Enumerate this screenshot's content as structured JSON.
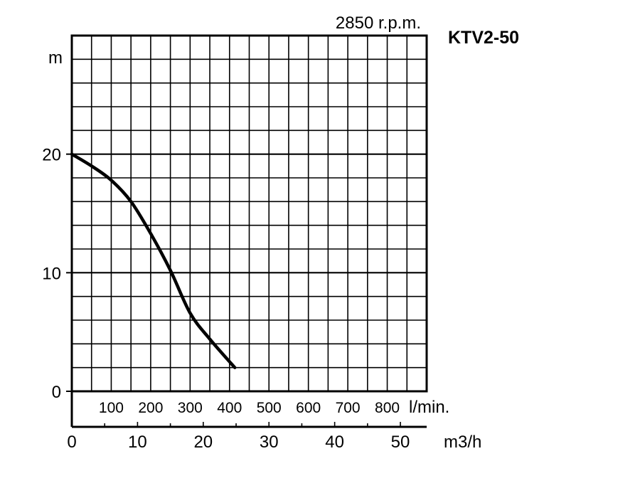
{
  "chart_data": {
    "type": "line",
    "title": "KTV2-50",
    "subtitle": "2850 r.p.m.",
    "ylabel": "m",
    "ylim": [
      0,
      30
    ],
    "yticks": [
      0,
      10,
      20
    ],
    "x_flow_m3h": {
      "label": "m3/h",
      "lim": [
        0,
        54
      ],
      "ticks": [
        0,
        10,
        20,
        30,
        40,
        50
      ]
    },
    "x_flow_lmin": {
      "label": "l/min.",
      "ticks": [
        100,
        200,
        300,
        400,
        500,
        600,
        700,
        800
      ]
    },
    "grid": true,
    "series": [
      {
        "x": [
          0,
          3,
          6,
          9,
          12,
          15,
          18,
          21,
          24.8
        ],
        "y": [
          20,
          19,
          17.8,
          16,
          13.3,
          10.2,
          6.6,
          4.4,
          2
        ]
      }
    ]
  }
}
